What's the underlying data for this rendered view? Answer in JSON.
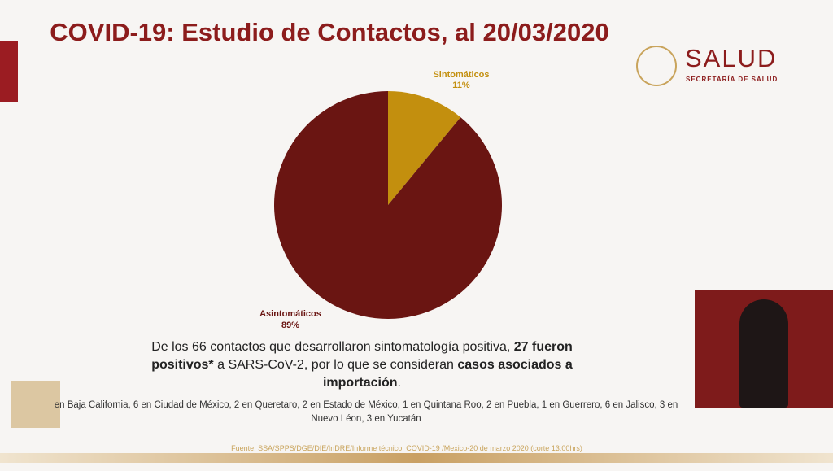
{
  "chart_data": {
    "type": "pie",
    "title": "COVID-19: Estudio de Contactos, al 20/03/2020",
    "categories": [
      "Sintomáticos",
      "Asintomáticos"
    ],
    "values": [
      11,
      89
    ],
    "value_labels": [
      "11%",
      "89%"
    ],
    "colors": [
      "#c38f0e",
      "#6a1512"
    ]
  },
  "logo": {
    "name": "SALUD",
    "subtitle": "SECRETARÍA DE SALUD"
  },
  "description": [
    "De los 66 contactos que desarrollaron sintomatología positiva, ",
    "27 fueron positivos*",
    " a SARS-CoV-2, por lo que se consideran ",
    "casos asociados a importación",
    "."
  ],
  "states": "en Baja California, 6 en Ciudad de México,  2 en Queretaro, 2 en Estado de México, 1 en Quintana Roo,  2 en Puebla, 1 en Guerrero,  6 en Jalisco, 3  en Nuevo Léon, 3 en Yucatán",
  "source": "Fuente: SSA/SPPS/DGE/DIE/InDRE/Informe técnico. COVID-19 /Mexico-20 de marzo 2020 (corte 13:00hrs)"
}
